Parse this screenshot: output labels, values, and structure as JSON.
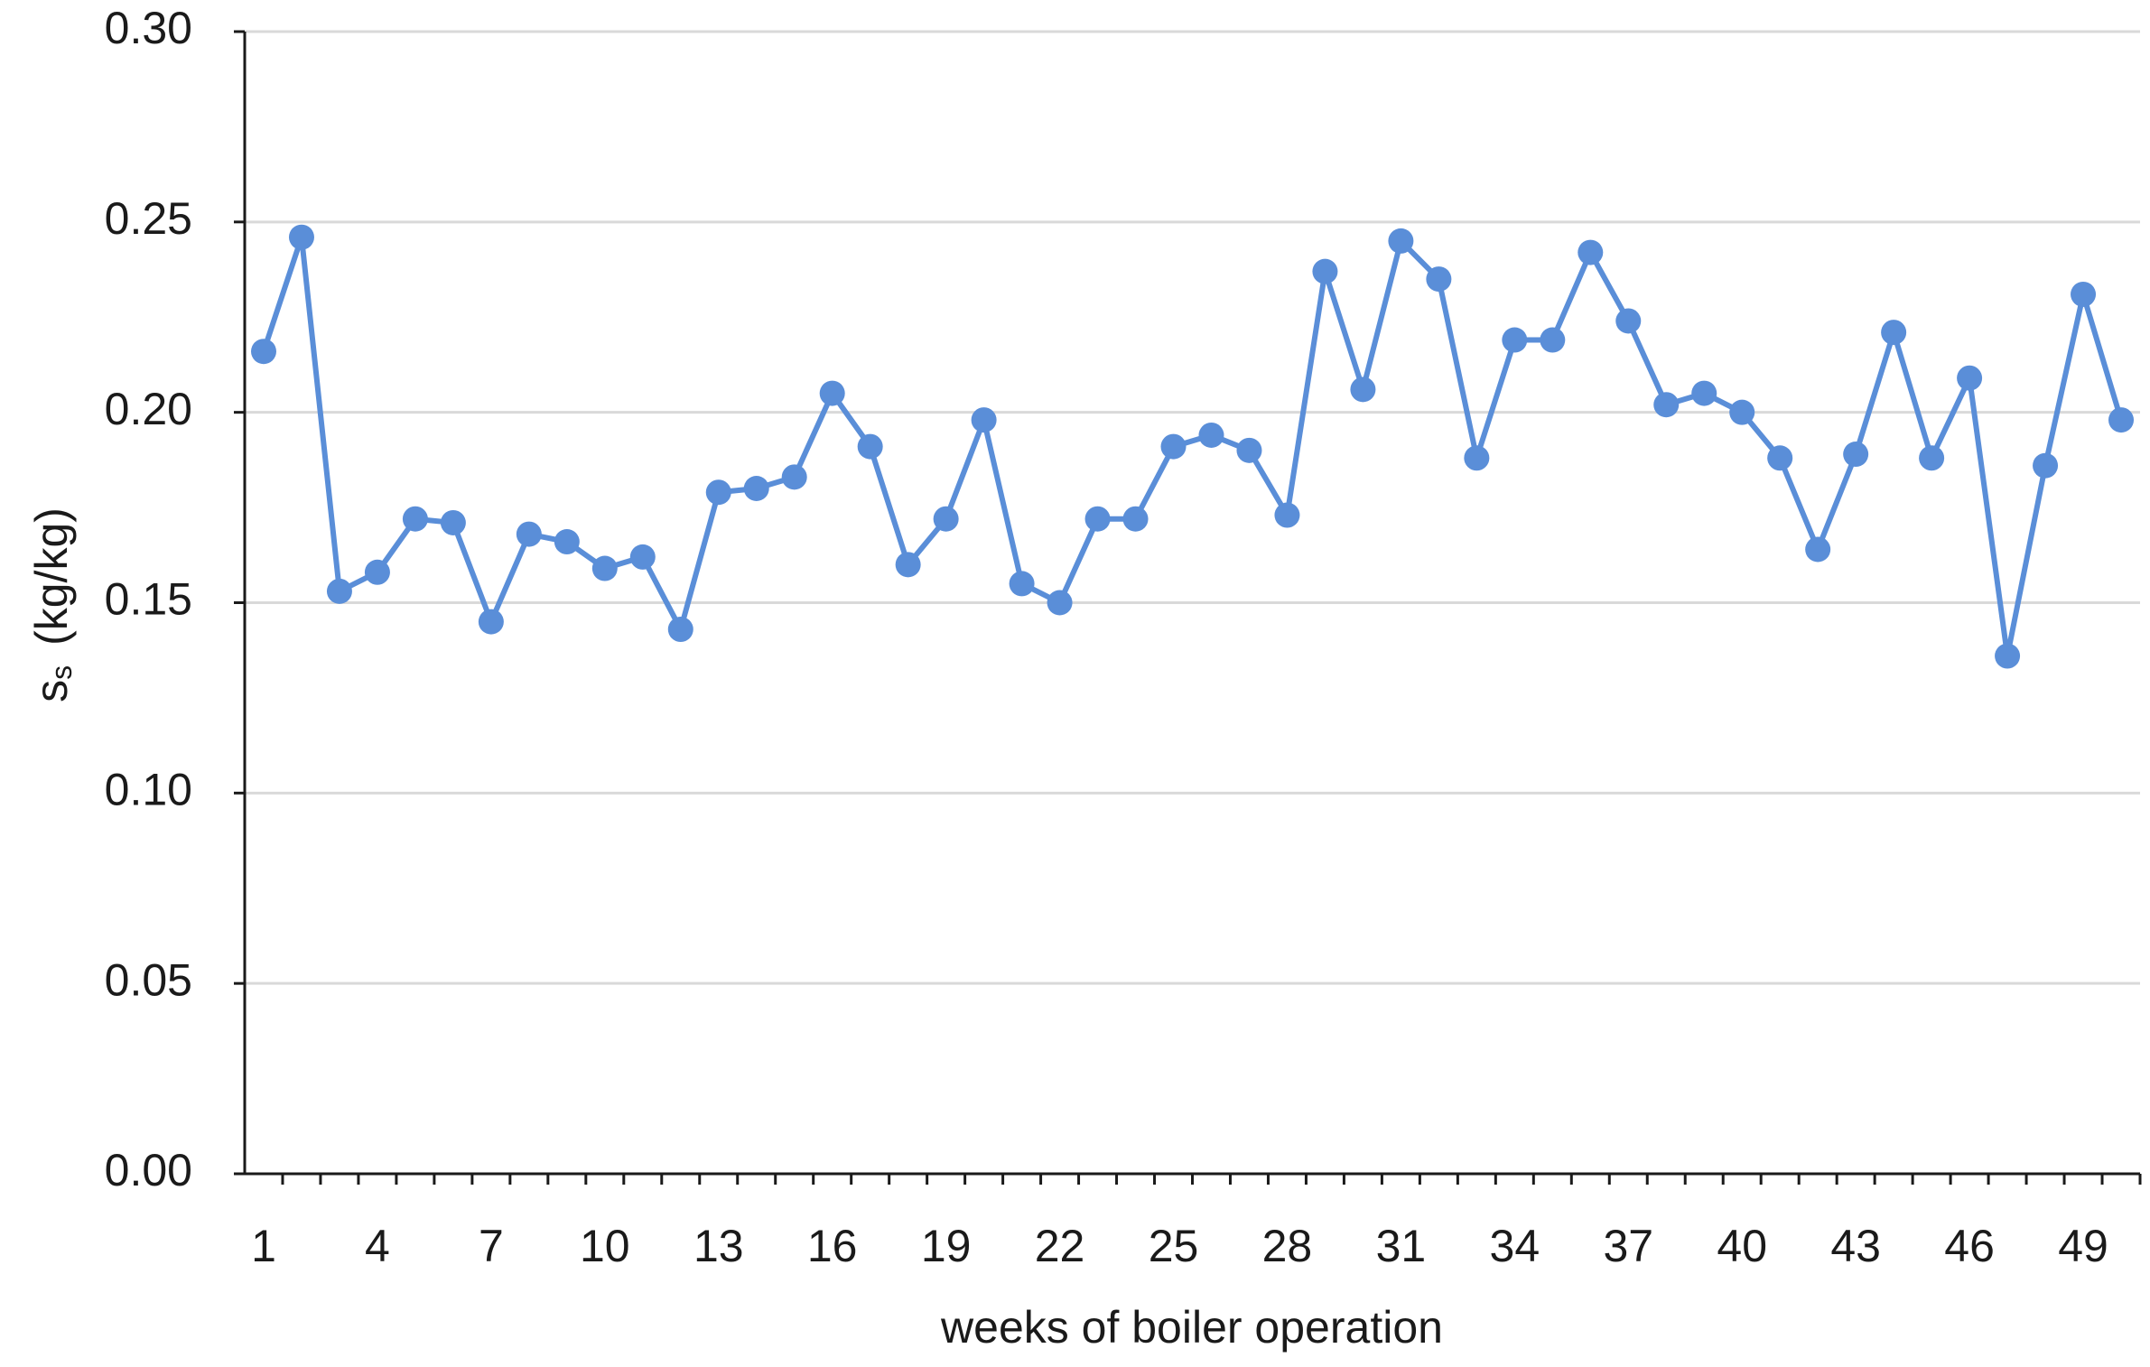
{
  "chart_data": {
    "type": "line",
    "x_label": "weeks of boiler operation",
    "y_label": {
      "symbol": "s",
      "subscript": "s",
      "unit": "(kg/kg)"
    },
    "categories": [
      1,
      null,
      null,
      4,
      null,
      null,
      7,
      null,
      null,
      10,
      null,
      null,
      13,
      null,
      null,
      16,
      null,
      null,
      19,
      null,
      null,
      22,
      null,
      null,
      25,
      null,
      null,
      28,
      null,
      null,
      31,
      null,
      null,
      34,
      null,
      null,
      37,
      null,
      null,
      40,
      null,
      null,
      43,
      null,
      null,
      46,
      null,
      null,
      49,
      null
    ],
    "series": [
      {
        "color": "#5a8ed8",
        "values": [
          0.216,
          0.246,
          0.153,
          0.158,
          0.172,
          0.171,
          0.145,
          0.168,
          0.166,
          0.159,
          0.162,
          0.143,
          0.179,
          0.18,
          0.183,
          0.205,
          0.191,
          0.16,
          0.172,
          0.198,
          0.155,
          0.15,
          0.172,
          0.172,
          0.191,
          0.194,
          0.19,
          0.173,
          0.237,
          0.206,
          0.245,
          0.235,
          0.188,
          0.219,
          0.219,
          0.242,
          0.224,
          0.202,
          0.205,
          0.2,
          0.188,
          0.164,
          0.189,
          0.221,
          0.188,
          0.209,
          0.136,
          0.186,
          0.231,
          0.198
        ]
      }
    ],
    "ylim": [
      0,
      0.3
    ],
    "yticks": [
      {
        "value": 0,
        "label": "0.00"
      },
      {
        "value": 0.05,
        "label": "0.05"
      },
      {
        "value": 0.1,
        "label": "0.10"
      },
      {
        "value": 0.15,
        "label": "0.15"
      },
      {
        "value": 0.2,
        "label": "0.20"
      },
      {
        "value": 0.25,
        "label": "0.25"
      },
      {
        "value": 0.3,
        "label": "0.30"
      }
    ],
    "grid": true
  }
}
